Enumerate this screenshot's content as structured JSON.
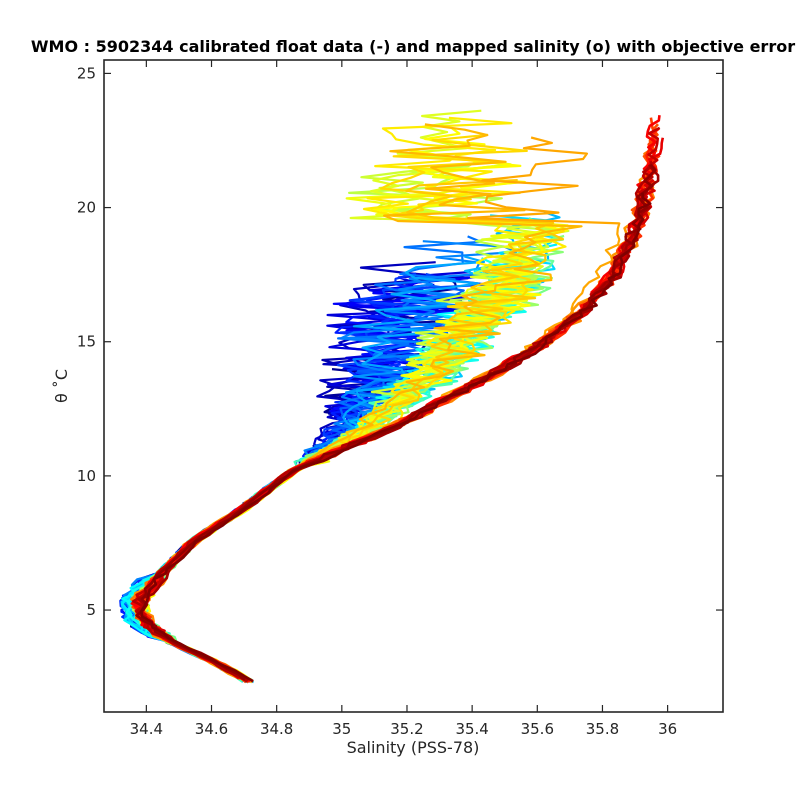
{
  "chart_data": {
    "type": "line",
    "title": "WMO : 5902344 calibrated float data (-) and mapped salinity (o) with objective error",
    "xlabel": "Salinity (PSS-78)",
    "ylabel": "θ ˚C",
    "xlim": [
      34.27,
      36.17
    ],
    "ylim": [
      1.2,
      25.5
    ],
    "x_ticks": [
      34.4,
      34.6,
      34.8,
      35,
      35.2,
      35.4,
      35.6,
      35.8,
      36
    ],
    "x_tick_labels": [
      "34.4",
      "34.6",
      "34.8",
      "35",
      "35.2",
      "35.4",
      "35.6",
      "35.8",
      "36"
    ],
    "y_ticks": [
      5,
      10,
      15,
      20,
      25
    ],
    "y_tick_labels": [
      "5",
      "10",
      "15",
      "20",
      "25"
    ],
    "grid": false,
    "legend": "none",
    "colormap": "jet",
    "colormap_stops": [
      "#00008f",
      "#0000ff",
      "#0080ff",
      "#00ffff",
      "#80ff80",
      "#ffff00",
      "#ff8000",
      "#ff0000",
      "#800000"
    ],
    "series_count": 60,
    "mean_profile": {
      "x": [
        34.72,
        34.62,
        34.48,
        34.39,
        34.38,
        34.45,
        34.55,
        34.7,
        34.85,
        35.0,
        35.15,
        35.3,
        35.45,
        35.58,
        35.7,
        35.8,
        35.87,
        35.91,
        35.93
      ],
      "y": [
        2.3,
        3.0,
        3.8,
        4.6,
        5.4,
        6.4,
        7.6,
        8.8,
        10.2,
        11.0,
        11.8,
        12.8,
        13.8,
        14.8,
        16.0,
        17.5,
        19.5,
        21.5,
        23.5
      ]
    },
    "profile_spread": {
      "early": {
        "salinity_range_at_11C": [
          34.8,
          35.1
        ],
        "salinity_range_at_17C": [
          35.0,
          35.5
        ],
        "salinity_range_at_22C": [
          35.1,
          35.7
        ]
      },
      "late": {
        "salinity_range_at_22C": [
          35.8,
          36.07
        ],
        "max_temperature": 24.3,
        "max_salinity": 36.07
      }
    },
    "deep_end_point": {
      "x": 34.72,
      "y": 2.3
    },
    "min_salinity_point": {
      "x": 34.37,
      "y": 5.2
    }
  }
}
